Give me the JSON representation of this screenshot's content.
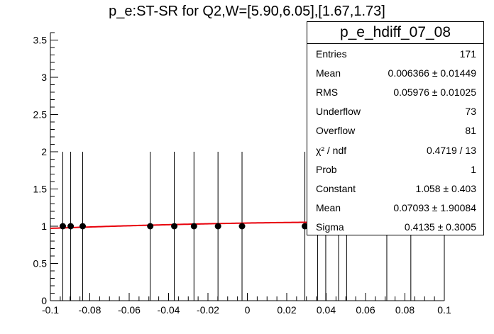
{
  "title": "p_e:ST-SR for Q2,W=[5.90,6.05],[1.67,1.73]",
  "colors": {
    "fit": "#e8000b",
    "points": "#000000",
    "axis": "#000000"
  },
  "stats_box": {
    "title": "p_e_hdiff_07_08",
    "rows": [
      {
        "label": "Entries",
        "value": "171"
      },
      {
        "label": "Mean",
        "value": "0.006366 ± 0.01449"
      },
      {
        "label": "RMS",
        "value": "0.05976 ± 0.01025"
      },
      {
        "label": "Underflow",
        "value": "73"
      },
      {
        "label": "Overflow",
        "value": "81"
      },
      {
        "label": "χ² / ndf",
        "value": "0.4719 / 13"
      },
      {
        "label": "Prob",
        "value": "1"
      },
      {
        "label": "Constant",
        "value": "1.058 ± 0.403"
      },
      {
        "label": "Mean",
        "value": "0.07093 ± 1.90084"
      },
      {
        "label": "Sigma",
        "value": "0.4135 ± 0.3005"
      }
    ]
  },
  "chart_data": {
    "type": "scatter",
    "title": "p_e:ST-SR for Q2,W=[5.90,6.05],[1.67,1.73]",
    "xlabel": "",
    "ylabel": "",
    "xlim": [
      -0.1,
      0.1
    ],
    "ylim": [
      0,
      3.6
    ],
    "x_ticks": [
      -0.1,
      -0.08,
      -0.06,
      -0.04,
      -0.02,
      0,
      0.02,
      0.04,
      0.06,
      0.08,
      0.1
    ],
    "x_tick_labels": [
      "-0.1",
      "-0.08",
      "-0.06",
      "-0.04",
      "-0.02",
      "0",
      "0.02",
      "0.04",
      "0.06",
      "0.08",
      "0.1"
    ],
    "y_ticks": [
      0,
      0.5,
      1,
      1.5,
      2,
      2.5,
      3,
      3.5
    ],
    "y_tick_labels": [
      "0",
      "0.5",
      "1",
      "1.5",
      "2",
      "2.5",
      "3",
      "3.5"
    ],
    "grid": false,
    "points": [
      {
        "x": -0.0937,
        "y": 1,
        "err": 1
      },
      {
        "x": -0.0897,
        "y": 1,
        "err": 1
      },
      {
        "x": -0.0836,
        "y": 1,
        "err": 1
      },
      {
        "x": -0.0493,
        "y": 1,
        "err": 1
      },
      {
        "x": -0.0371,
        "y": 1,
        "err": 1
      },
      {
        "x": -0.0271,
        "y": 1,
        "err": 1
      },
      {
        "x": -0.0149,
        "y": 1,
        "err": 1
      },
      {
        "x": -0.0027,
        "y": 1,
        "err": 1
      },
      {
        "x": 0.0292,
        "y": 1,
        "err": 1
      },
      {
        "x": 0.0357,
        "y": 1,
        "err": 1
      },
      {
        "x": 0.0398,
        "y": 1,
        "err": 1
      },
      {
        "x": 0.0463,
        "y": 1,
        "err": 1
      },
      {
        "x": 0.0504,
        "y": 1,
        "err": 1
      },
      {
        "x": 0.0708,
        "y": 1,
        "err": 1
      },
      {
        "x": 0.083,
        "y": 1,
        "err": 1
      }
    ],
    "fit": {
      "function": "gaus",
      "constant": 1.058,
      "mean": 0.07093,
      "sigma": 0.4135,
      "x_range": [
        -0.1,
        0.0965
      ]
    }
  }
}
